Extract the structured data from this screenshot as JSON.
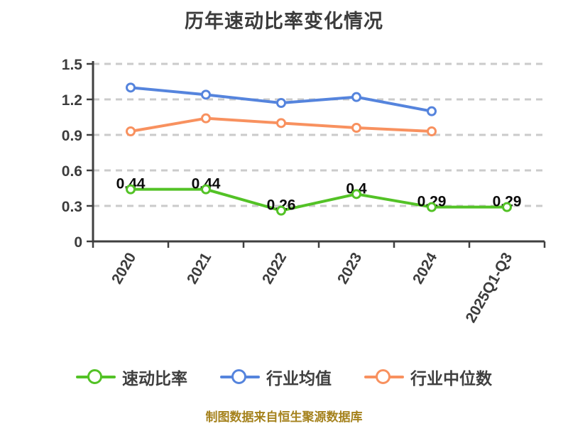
{
  "footer": {
    "text": "制图数据来自恒生聚源数据库",
    "color": "#a5821d"
  },
  "chart_data": {
    "type": "line",
    "title": "历年速动比率变化情况",
    "categories": [
      "2020",
      "2021",
      "2022",
      "2023",
      "2024",
      "2025Q1-Q3"
    ],
    "series": [
      {
        "name": "速动比率",
        "color": "#53c226",
        "values": [
          0.44,
          0.44,
          0.26,
          0.4,
          0.29,
          0.29
        ],
        "point_labels": [
          "0.44",
          "0.44",
          "0.26",
          "0.4",
          "0.29",
          "0.29"
        ]
      },
      {
        "name": "行业均值",
        "color": "#5584dd",
        "values": [
          1.3,
          1.24,
          1.17,
          1.22,
          1.1
        ]
      },
      {
        "name": "行业中位数",
        "color": "#f8915f",
        "values": [
          0.93,
          1.04,
          1.0,
          0.96,
          0.93
        ]
      }
    ],
    "xlabel": "",
    "ylabel": "",
    "ylim": [
      0,
      1.5
    ],
    "yticks": [
      0,
      0.3,
      0.6,
      0.9,
      1.2,
      1.5
    ],
    "grid": "horizontal-dashed",
    "gridline_color": "#cbcbcb",
    "axis_color": "#3f3f3f",
    "data_label_color": "#0a0a0a",
    "marker": "circle-white-fill",
    "legend_position": "bottom"
  }
}
